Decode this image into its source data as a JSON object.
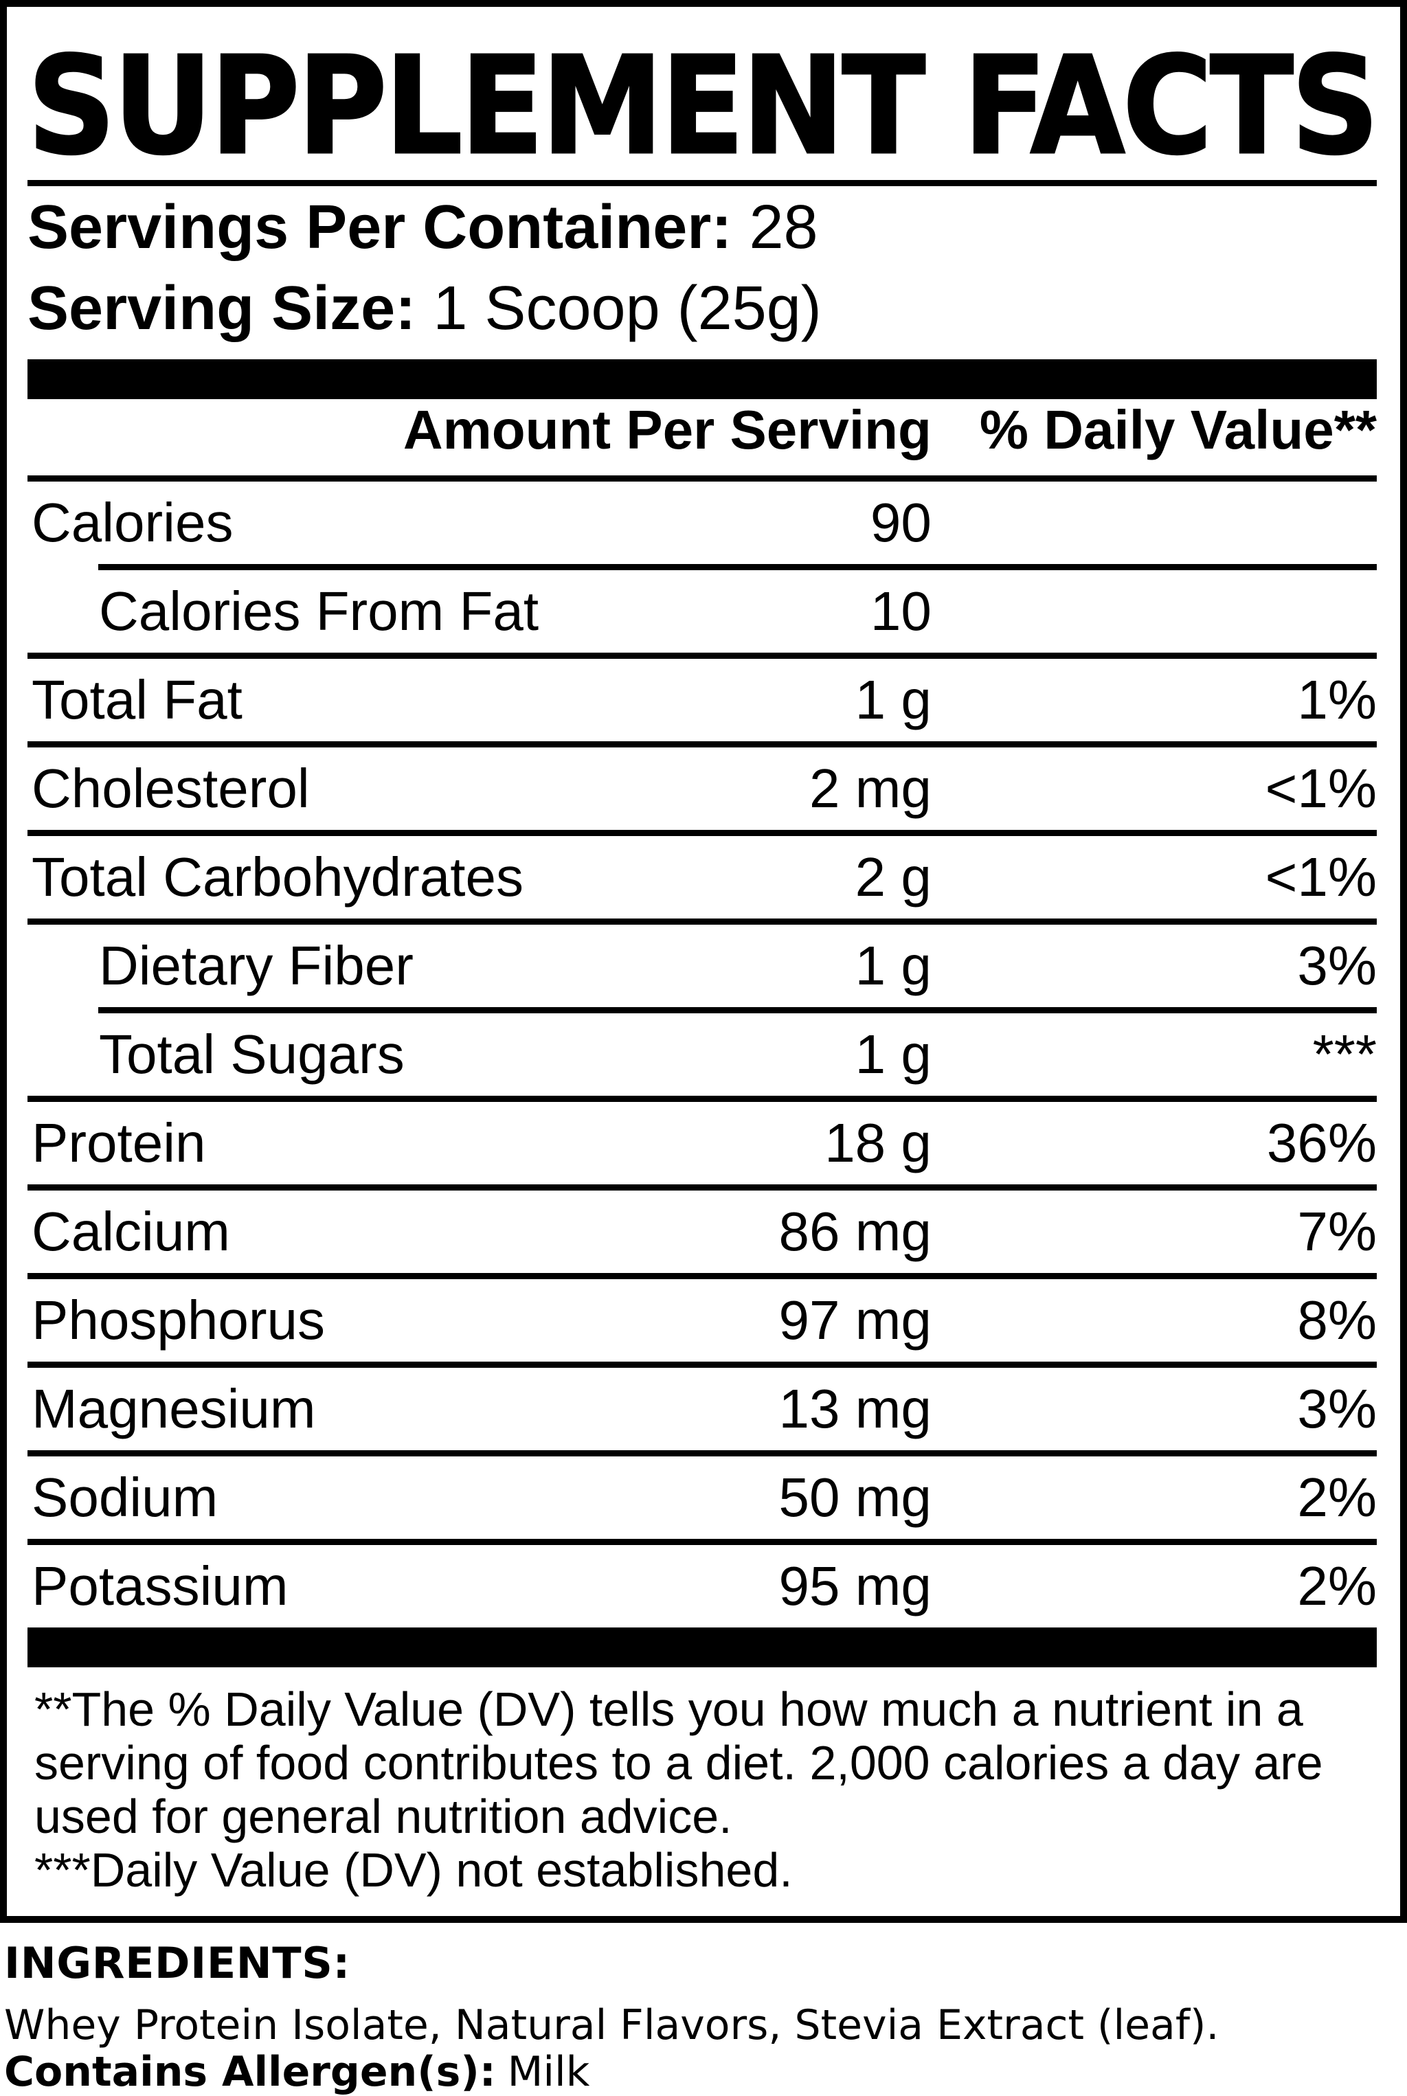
{
  "colors": {
    "text": "#000000",
    "background": "#ffffff"
  },
  "panel": {
    "title": "SUPPLEMENT FACTS",
    "servings_per_container_label": "Servings Per Container:",
    "servings_per_container_value": "28",
    "serving_size_label": "Serving Size:",
    "serving_size_value": "1 Scoop (25g)",
    "col_amount": "Amount Per Serving",
    "col_dv": "% Daily Value**",
    "rows": [
      {
        "name": "Calories",
        "amount": "90",
        "dv": "",
        "indent": false,
        "separator": "none"
      },
      {
        "name": "Calories From Fat",
        "amount": "10",
        "dv": "",
        "indent": true,
        "separator": "indent"
      },
      {
        "name": "Total Fat",
        "amount": "1 g",
        "dv": "1%",
        "indent": false,
        "separator": "full"
      },
      {
        "name": "Cholesterol",
        "amount": "2 mg",
        "dv": "<1%",
        "indent": false,
        "separator": "full"
      },
      {
        "name": "Total Carbohydrates",
        "amount": "2 g",
        "dv": "<1%",
        "indent": false,
        "separator": "full"
      },
      {
        "name": "Dietary Fiber",
        "amount": "1 g",
        "dv": "3%",
        "indent": true,
        "separator": "full"
      },
      {
        "name": "Total Sugars",
        "amount": "1 g",
        "dv": "***",
        "indent": true,
        "separator": "indent"
      },
      {
        "name": "Protein",
        "amount": "18 g",
        "dv": "36%",
        "indent": false,
        "separator": "full"
      },
      {
        "name": "Calcium",
        "amount": "86 mg",
        "dv": "7%",
        "indent": false,
        "separator": "full"
      },
      {
        "name": "Phosphorus",
        "amount": "97 mg",
        "dv": "8%",
        "indent": false,
        "separator": "full"
      },
      {
        "name": "Magnesium",
        "amount": "13 mg",
        "dv": "3%",
        "indent": false,
        "separator": "full"
      },
      {
        "name": "Sodium",
        "amount": "50 mg",
        "dv": "2%",
        "indent": false,
        "separator": "full"
      },
      {
        "name": "Potassium",
        "amount": "95 mg",
        "dv": "2%",
        "indent": false,
        "separator": "full"
      }
    ],
    "footnotes": [
      "**The % Daily Value (DV) tells you how much a nutrient in a serving of food contributes to a diet. 2,000 calories a day are used for general nutrition advice.",
      "***Daily Value (DV) not established."
    ]
  },
  "ingredients": {
    "heading": "INGREDIENTS:",
    "list": "Whey Protein Isolate, Natural Flavors, Stevia Extract (leaf).",
    "allergen_label": "Contains Allergen(s):",
    "allergen_value": "Milk"
  }
}
